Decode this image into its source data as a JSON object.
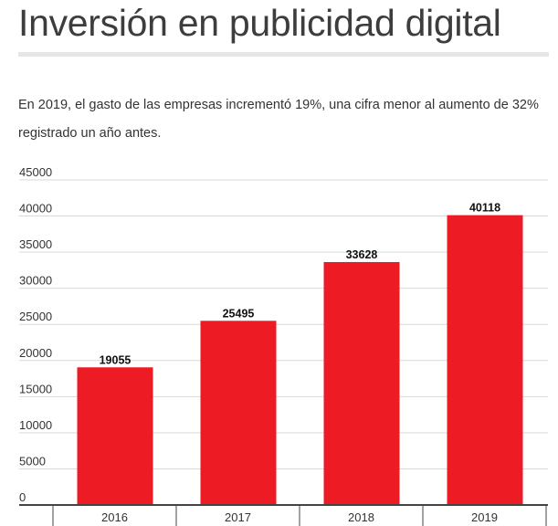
{
  "header": {
    "title": "Inversión en publicidad digital",
    "subtitle": "En 2019, el gasto de las empresas incrementó 19%, una cifra menor al aumento de 32% registrado un año antes."
  },
  "colors": {
    "bar": "#ed1c24",
    "grid": "#d9d9d9",
    "axis": "#444444",
    "title_rule": "#e6e6e6"
  },
  "chart_data": {
    "type": "bar",
    "title": "Inversión en publicidad digital",
    "subtitle": "En 2019, el gasto de las empresas incrementó 19%, una cifra menor al aumento de 32% registrado un año antes.",
    "categories": [
      "2016",
      "2017",
      "2018",
      "2019"
    ],
    "values": [
      19055,
      25495,
      33628,
      40118
    ],
    "data_labels": [
      "19055",
      "25495",
      "33628",
      "40118"
    ],
    "xlabel": "",
    "ylabel": "",
    "ylim": [
      0,
      45000
    ],
    "yticks": [
      0,
      5000,
      10000,
      15000,
      20000,
      25000,
      30000,
      35000,
      40000,
      45000
    ],
    "ytick_labels": [
      "0",
      "5000",
      "10000",
      "15000",
      "20000",
      "25000",
      "30000",
      "35000",
      "40000",
      "45000"
    ],
    "grid": true,
    "legend": "none"
  }
}
